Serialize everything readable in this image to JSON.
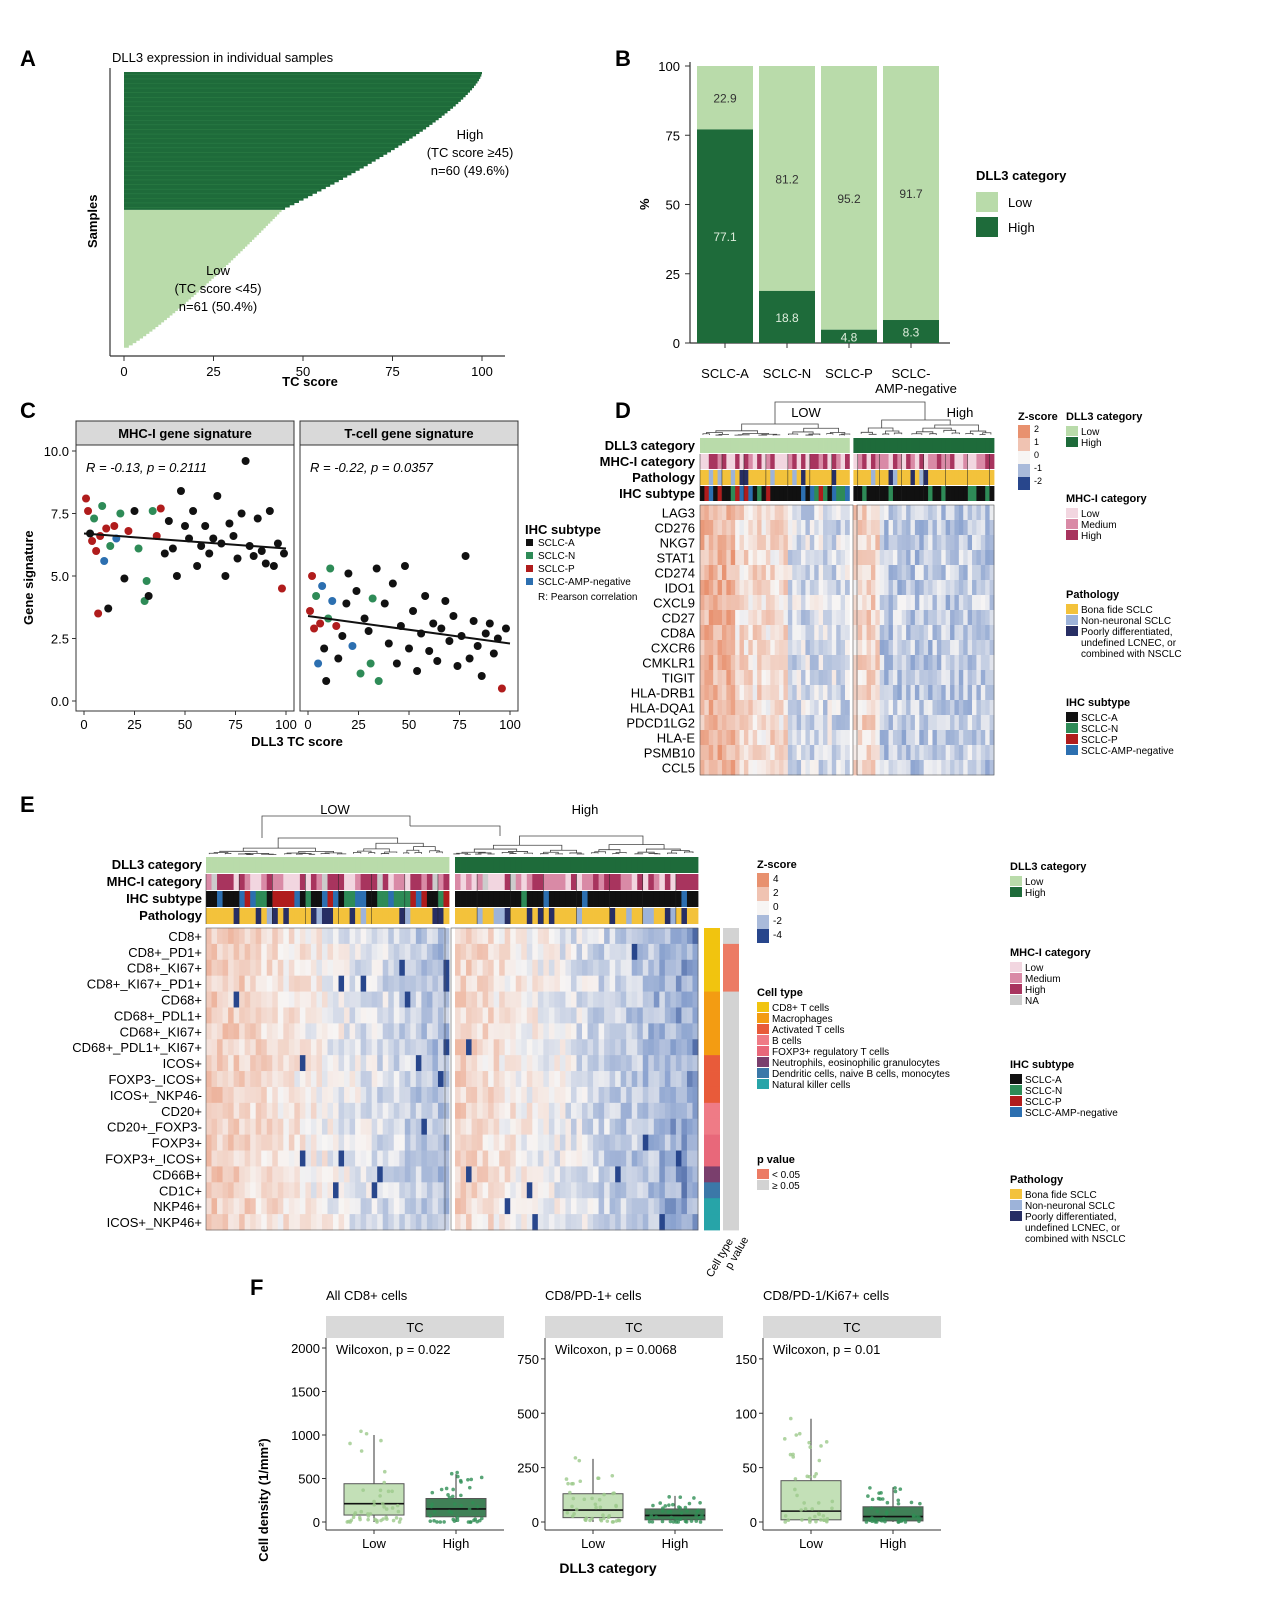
{
  "colors": {
    "dark_green": "#1e6b3a",
    "light_green": "#b9dbaa",
    "high_red": "#e8916f",
    "low_blue": "#8aa2cf",
    "sclc_a": "#111111",
    "sclc_n": "#2e8b57",
    "sclc_p": "#b01c1c",
    "sclc_amp": "#2c6fb0",
    "mhc_low": "#f2d6e0",
    "mhc_med": "#d98aa6",
    "mhc_high": "#a8345e",
    "mhc_na": "#cccccc",
    "path_bona": "#f3c23b",
    "path_non": "#9db3d9",
    "path_poor": "#272e64"
  },
  "panelA": {
    "letter": "A",
    "title": "DLL3 expression in individual samples",
    "ylabel": "Samples",
    "xlabel": "TC score",
    "ticks": [
      "0",
      "25",
      "50",
      "75",
      "100"
    ],
    "high_lines": [
      "High",
      "(TC score ≥45)",
      "n=60 (49.6%)"
    ],
    "low_lines": [
      "Low",
      "(TC score <45)",
      "n=61 (50.4%)"
    ]
  },
  "panelB": {
    "letter": "B",
    "ylabel": "%",
    "yticks": [
      "0",
      "25",
      "50",
      "75",
      "100"
    ],
    "legend_title": "DLL3 category",
    "legend_low": "Low",
    "legend_high": "High",
    "xlabel_line2": "AMP-negative"
  },
  "panelC": {
    "letter": "C",
    "ylabel": "Gene signature",
    "xlabel": "DLL3 TC score",
    "facet1": "MHC-I gene signature",
    "facet2": "T-cell gene signature",
    "stat1": "R = -0.13, p = 0.2111",
    "stat2": "R = -0.22, p = 0.0357",
    "yticks": [
      "0.0",
      "2.5",
      "5.0",
      "7.5",
      "10.0"
    ],
    "xticks": [
      "0",
      "25",
      "50",
      "75",
      "100"
    ],
    "legend_title": "IHC subtype",
    "legend_items": [
      "SCLC-A",
      "SCLC-N",
      "SCLC-P",
      "SCLC-AMP-negative"
    ],
    "legend_note": "R: Pearson correlation"
  },
  "panelD": {
    "letter": "D",
    "group_low": "LOW",
    "group_high": "High",
    "annotation_rows": [
      "DLL3 category",
      "MHC-I category",
      "Pathology",
      "IHC subtype"
    ],
    "genes": [
      "LAG3",
      "CD276",
      "NKG7",
      "STAT1",
      "CD274",
      "IDO1",
      "CXCL9",
      "CD27",
      "CD8A",
      "CXCR6",
      "CMKLR1",
      "TIGIT",
      "HLA-DRB1",
      "HLA-DQA1",
      "PDCD1LG2",
      "HLA-E",
      "PSMB10",
      "CCL5"
    ],
    "zscore_title": "Z-score",
    "zscore_ticks": [
      "2",
      "1",
      "0",
      "-1",
      "-2"
    ],
    "legend_dll3_title": "DLL3 category",
    "legend_dll3": [
      "Low",
      "High"
    ],
    "legend_mhc_title": "MHC-I category",
    "legend_mhc": [
      "Low",
      "Medium",
      "High"
    ],
    "legend_path_title": "Pathology",
    "legend_path": [
      "Bona fide SCLC",
      "Non-neuronal SCLC",
      "Poorly differentiated,",
      "undefined LCNEC, or",
      "combined with NSCLC"
    ],
    "legend_ihc_title": "IHC subtype",
    "legend_ihc": [
      "SCLC-A",
      "SCLC-N",
      "SCLC-P",
      "SCLC-AMP-negative"
    ]
  },
  "panelE": {
    "letter": "E",
    "group_low": "LOW",
    "group_high": "High",
    "annotation_rows": [
      "DLL3 category",
      "MHC-I category",
      "IHC subtype",
      "Pathology"
    ],
    "rows": [
      "CD8+",
      "CD8+_PD1+",
      "CD8+_KI67+",
      "CD8+_KI67+_PD1+",
      "CD68+",
      "CD68+_PDL1+",
      "CD68+_KI67+",
      "CD68+_PDL1+_KI67+",
      "ICOS+",
      "FOXP3-_ICOS+",
      "ICOS+_NKP46-",
      "CD20+",
      "CD20+_FOXP3-",
      "FOXP3+",
      "FOXP3+_ICOS+",
      "CD66B+",
      "CD1C+",
      "NKP46+",
      "ICOS+_NKP46+"
    ],
    "zscore_title": "Z-score",
    "zscore_ticks": [
      "4",
      "2",
      "0",
      "-2",
      "-4"
    ],
    "celltype_title": "Cell type",
    "celltype_items": [
      "CD8+ T cells",
      "Macrophages",
      "Activated T cells",
      "B cells",
      "FOXP3+ regulatory T cells",
      "Neutrophils, eosinophilic granulocytes",
      "Dendritic cells, naive B cells, monocytes",
      "Natural killer cells"
    ],
    "pvalue_title": "p value",
    "pvalue_items": [
      "< 0.05",
      "≥ 0.05"
    ],
    "side_labels": [
      "Cell type",
      "p value"
    ],
    "legend_dll3_title": "DLL3 category",
    "legend_dll3": [
      "Low",
      "High"
    ],
    "legend_mhc_title": "MHC-I category",
    "legend_mhc": [
      "Low",
      "Medium",
      "High",
      "NA"
    ],
    "legend_ihc_title": "IHC subtype",
    "legend_ihc": [
      "SCLC-A",
      "SCLC-N",
      "SCLC-P",
      "SCLC-AMP-negative"
    ],
    "legend_path_title": "Pathology",
    "legend_path": [
      "Bona fide SCLC",
      "Non-neuronal SCLC",
      "Poorly differentiated,",
      "undefined LCNEC, or",
      "combined with NSCLC"
    ]
  },
  "panelF": {
    "letter": "F",
    "ylabel": "Cell density (1/mm²)",
    "xlabel": "DLL3 category",
    "facet": "TC",
    "categories": [
      "Low",
      "High"
    ]
  },
  "chart_data": [
    {
      "type": "bar",
      "panel": "A",
      "title": "DLL3 expression in individual samples",
      "xlabel": "TC score",
      "ylabel": "Samples",
      "xlim": [
        0,
        100
      ],
      "high_n": 60,
      "low_n": 61,
      "threshold": 45
    },
    {
      "type": "bar",
      "panel": "B",
      "categories": [
        "SCLC-A",
        "SCLC-N",
        "SCLC-P",
        "SCLC-AMP-negative"
      ],
      "series": [
        {
          "name": "High",
          "values": [
            77.1,
            18.8,
            4.8,
            8.3
          ]
        },
        {
          "name": "Low",
          "values": [
            22.9,
            81.2,
            95.2,
            91.7
          ]
        }
      ],
      "ylabel": "%",
      "ylim": [
        0,
        100
      ],
      "stacked": true,
      "legend": "right"
    },
    {
      "type": "scatter",
      "panel": "C-left",
      "title": "MHC-I gene signature",
      "xlabel": "DLL3 TC score",
      "ylabel": "Gene signature",
      "xlim": [
        0,
        100
      ],
      "ylim": [
        0,
        10
      ],
      "regression": {
        "x": [
          0,
          100
        ],
        "y": [
          6.7,
          6.1
        ]
      },
      "points": [
        {
          "x": 1,
          "y": 8.1,
          "g": "P"
        },
        {
          "x": 2,
          "y": 7.6,
          "g": "P"
        },
        {
          "x": 3,
          "y": 6.7,
          "g": "A"
        },
        {
          "x": 4,
          "y": 6.4,
          "g": "P"
        },
        {
          "x": 5,
          "y": 7.3,
          "g": "N"
        },
        {
          "x": 6,
          "y": 6.0,
          "g": "P"
        },
        {
          "x": 7,
          "y": 3.5,
          "g": "P"
        },
        {
          "x": 8,
          "y": 6.6,
          "g": "P"
        },
        {
          "x": 9,
          "y": 7.8,
          "g": "N"
        },
        {
          "x": 10,
          "y": 5.6,
          "g": "AMP"
        },
        {
          "x": 11,
          "y": 6.9,
          "g": "P"
        },
        {
          "x": 12,
          "y": 3.7,
          "g": "A"
        },
        {
          "x": 13,
          "y": 6.2,
          "g": "N"
        },
        {
          "x": 15,
          "y": 7.0,
          "g": "P"
        },
        {
          "x": 16,
          "y": 6.5,
          "g": "AMP"
        },
        {
          "x": 18,
          "y": 7.5,
          "g": "N"
        },
        {
          "x": 20,
          "y": 4.9,
          "g": "A"
        },
        {
          "x": 22,
          "y": 6.8,
          "g": "P"
        },
        {
          "x": 25,
          "y": 7.6,
          "g": "A"
        },
        {
          "x": 27,
          "y": 6.1,
          "g": "N"
        },
        {
          "x": 30,
          "y": 4.0,
          "g": "N"
        },
        {
          "x": 31,
          "y": 4.8,
          "g": "N"
        },
        {
          "x": 32,
          "y": 4.2,
          "g": "A"
        },
        {
          "x": 34,
          "y": 7.6,
          "g": "N"
        },
        {
          "x": 36,
          "y": 6.6,
          "g": "P"
        },
        {
          "x": 38,
          "y": 7.7,
          "g": "P"
        },
        {
          "x": 40,
          "y": 5.9,
          "g": "A"
        },
        {
          "x": 42,
          "y": 7.2,
          "g": "A"
        },
        {
          "x": 44,
          "y": 6.1,
          "g": "A"
        },
        {
          "x": 46,
          "y": 5.0,
          "g": "A"
        },
        {
          "x": 48,
          "y": 8.4,
          "g": "A"
        },
        {
          "x": 50,
          "y": 7.0,
          "g": "A"
        },
        {
          "x": 52,
          "y": 6.5,
          "g": "A"
        },
        {
          "x": 54,
          "y": 7.6,
          "g": "A"
        },
        {
          "x": 56,
          "y": 5.4,
          "g": "A"
        },
        {
          "x": 58,
          "y": 6.2,
          "g": "A"
        },
        {
          "x": 60,
          "y": 7.0,
          "g": "A"
        },
        {
          "x": 62,
          "y": 5.9,
          "g": "A"
        },
        {
          "x": 64,
          "y": 6.5,
          "g": "A"
        },
        {
          "x": 66,
          "y": 8.2,
          "g": "A"
        },
        {
          "x": 68,
          "y": 6.3,
          "g": "A"
        },
        {
          "x": 70,
          "y": 5.0,
          "g": "A"
        },
        {
          "x": 72,
          "y": 7.1,
          "g": "A"
        },
        {
          "x": 74,
          "y": 6.6,
          "g": "A"
        },
        {
          "x": 76,
          "y": 5.7,
          "g": "A"
        },
        {
          "x": 78,
          "y": 7.5,
          "g": "A"
        },
        {
          "x": 80,
          "y": 9.6,
          "g": "A"
        },
        {
          "x": 82,
          "y": 6.2,
          "g": "A"
        },
        {
          "x": 84,
          "y": 5.8,
          "g": "A"
        },
        {
          "x": 86,
          "y": 7.3,
          "g": "A"
        },
        {
          "x": 88,
          "y": 6.0,
          "g": "A"
        },
        {
          "x": 90,
          "y": 5.5,
          "g": "A"
        },
        {
          "x": 92,
          "y": 7.6,
          "g": "A"
        },
        {
          "x": 94,
          "y": 5.4,
          "g": "A"
        },
        {
          "x": 96,
          "y": 6.3,
          "g": "A"
        },
        {
          "x": 98,
          "y": 4.5,
          "g": "P"
        },
        {
          "x": 99,
          "y": 5.9,
          "g": "A"
        }
      ]
    },
    {
      "type": "scatter",
      "panel": "C-right",
      "title": "T-cell gene signature",
      "xlabel": "DLL3 TC score",
      "ylabel": "Gene signature",
      "xlim": [
        0,
        100
      ],
      "ylim": [
        0,
        10
      ],
      "regression": {
        "x": [
          0,
          100
        ],
        "y": [
          3.4,
          2.3
        ]
      },
      "points": [
        {
          "x": 1,
          "y": 3.6,
          "g": "P"
        },
        {
          "x": 2,
          "y": 5.0,
          "g": "P"
        },
        {
          "x": 3,
          "y": 2.9,
          "g": "P"
        },
        {
          "x": 4,
          "y": 4.2,
          "g": "N"
        },
        {
          "x": 5,
          "y": 1.5,
          "g": "AMP"
        },
        {
          "x": 6,
          "y": 3.1,
          "g": "P"
        },
        {
          "x": 7,
          "y": 4.6,
          "g": "AMP"
        },
        {
          "x": 8,
          "y": 2.1,
          "g": "A"
        },
        {
          "x": 9,
          "y": 0.8,
          "g": "A"
        },
        {
          "x": 10,
          "y": 3.3,
          "g": "N"
        },
        {
          "x": 11,
          "y": 5.3,
          "g": "N"
        },
        {
          "x": 12,
          "y": 4.0,
          "g": "AMP"
        },
        {
          "x": 14,
          "y": 3.0,
          "g": "P"
        },
        {
          "x": 15,
          "y": 1.7,
          "g": "A"
        },
        {
          "x": 17,
          "y": 2.6,
          "g": "A"
        },
        {
          "x": 19,
          "y": 3.9,
          "g": "A"
        },
        {
          "x": 20,
          "y": 5.1,
          "g": "A"
        },
        {
          "x": 22,
          "y": 2.2,
          "g": "AMP"
        },
        {
          "x": 24,
          "y": 4.4,
          "g": "A"
        },
        {
          "x": 26,
          "y": 1.1,
          "g": "N"
        },
        {
          "x": 28,
          "y": 3.3,
          "g": "A"
        },
        {
          "x": 30,
          "y": 2.8,
          "g": "A"
        },
        {
          "x": 31,
          "y": 1.5,
          "g": "N"
        },
        {
          "x": 32,
          "y": 4.1,
          "g": "N"
        },
        {
          "x": 34,
          "y": 5.3,
          "g": "A"
        },
        {
          "x": 35,
          "y": 0.8,
          "g": "N"
        },
        {
          "x": 38,
          "y": 3.9,
          "g": "A"
        },
        {
          "x": 40,
          "y": 2.3,
          "g": "A"
        },
        {
          "x": 42,
          "y": 4.7,
          "g": "A"
        },
        {
          "x": 44,
          "y": 1.5,
          "g": "A"
        },
        {
          "x": 46,
          "y": 3.0,
          "g": "A"
        },
        {
          "x": 48,
          "y": 5.4,
          "g": "A"
        },
        {
          "x": 50,
          "y": 2.1,
          "g": "A"
        },
        {
          "x": 52,
          "y": 3.6,
          "g": "A"
        },
        {
          "x": 54,
          "y": 1.2,
          "g": "A"
        },
        {
          "x": 56,
          "y": 2.7,
          "g": "A"
        },
        {
          "x": 58,
          "y": 4.2,
          "g": "A"
        },
        {
          "x": 60,
          "y": 2.0,
          "g": "A"
        },
        {
          "x": 62,
          "y": 3.1,
          "g": "A"
        },
        {
          "x": 64,
          "y": 1.6,
          "g": "A"
        },
        {
          "x": 66,
          "y": 2.9,
          "g": "A"
        },
        {
          "x": 68,
          "y": 4.0,
          "g": "A"
        },
        {
          "x": 70,
          "y": 2.4,
          "g": "A"
        },
        {
          "x": 72,
          "y": 3.4,
          "g": "A"
        },
        {
          "x": 74,
          "y": 1.4,
          "g": "A"
        },
        {
          "x": 76,
          "y": 2.6,
          "g": "A"
        },
        {
          "x": 78,
          "y": 5.8,
          "g": "A"
        },
        {
          "x": 80,
          "y": 1.7,
          "g": "A"
        },
        {
          "x": 82,
          "y": 3.2,
          "g": "A"
        },
        {
          "x": 84,
          "y": 2.2,
          "g": "A"
        },
        {
          "x": 86,
          "y": 1.0,
          "g": "A"
        },
        {
          "x": 88,
          "y": 2.7,
          "g": "A"
        },
        {
          "x": 90,
          "y": 3.1,
          "g": "A"
        },
        {
          "x": 92,
          "y": 1.9,
          "g": "A"
        },
        {
          "x": 94,
          "y": 2.5,
          "g": "A"
        },
        {
          "x": 96,
          "y": 0.5,
          "g": "P"
        },
        {
          "x": 98,
          "y": 2.9,
          "g": "A"
        }
      ]
    },
    {
      "type": "box",
      "panel": "F1",
      "title": "All CD8+ cells",
      "stat": "Wilcoxon, p = 0.022",
      "yticks": [
        0,
        500,
        1000,
        1500,
        2000
      ],
      "ylim": [
        0,
        2000
      ],
      "boxes": [
        {
          "name": "Low",
          "q1": 80,
          "median": 210,
          "q3": 440,
          "whisker_hi": 1000,
          "whisker_lo": 0
        },
        {
          "name": "High",
          "q1": 60,
          "median": 150,
          "q3": 270,
          "whisker_hi": 550,
          "whisker_lo": 0
        }
      ]
    },
    {
      "type": "box",
      "panel": "F2",
      "title": "CD8/PD-1+ cells",
      "stat": "Wilcoxon, p = 0.0068",
      "yticks": [
        0,
        250,
        500,
        750
      ],
      "ylim": [
        0,
        800
      ],
      "boxes": [
        {
          "name": "Low",
          "q1": 20,
          "median": 55,
          "q3": 130,
          "whisker_hi": 290,
          "whisker_lo": 0
        },
        {
          "name": "High",
          "q1": 10,
          "median": 30,
          "q3": 60,
          "whisker_hi": 120,
          "whisker_lo": 0
        }
      ]
    },
    {
      "type": "box",
      "panel": "F3",
      "title": "CD8/PD-1/Ki67+ cells",
      "stat": "Wilcoxon, p = 0.01",
      "yticks": [
        0,
        50,
        100,
        150
      ],
      "ylim": [
        0,
        160
      ],
      "boxes": [
        {
          "name": "Low",
          "q1": 2,
          "median": 10,
          "q3": 38,
          "whisker_hi": 95,
          "whisker_lo": 0
        },
        {
          "name": "High",
          "q1": 1,
          "median": 5,
          "q3": 14,
          "whisker_hi": 32,
          "whisker_lo": 0
        }
      ]
    }
  ]
}
